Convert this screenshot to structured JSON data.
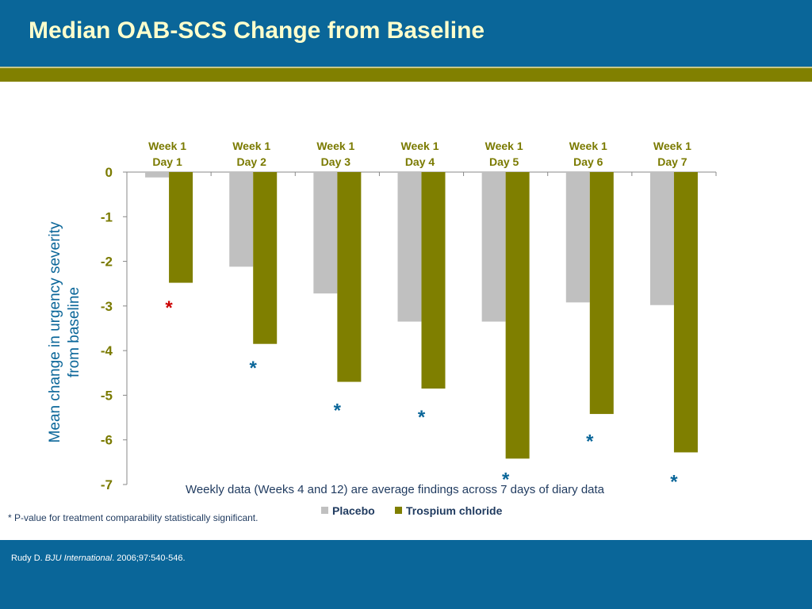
{
  "slide": {
    "title": "Median OAB-SCS Change from Baseline",
    "footnote": "* P-value for treatment comparability statistically significant.",
    "citation": {
      "author": "Rudy D. ",
      "journal": "BJU International",
      "details": ". 2006;97:540-546."
    }
  },
  "colors": {
    "header_bg": "#0a6699",
    "title_text": "#ffffcc",
    "olive_band": "#818000",
    "placebo": "#c0c0c0",
    "trospium": "#7f7f00",
    "axis_text": "#7a7a00",
    "ylabel_text": "#0a6699",
    "star_red": "#cc0000",
    "star_blue": "#0a6699"
  },
  "chart_data": {
    "type": "bar",
    "categories": [
      [
        "Week 1",
        "Day 1"
      ],
      [
        "Week 1",
        "Day 2"
      ],
      [
        "Week 1",
        "Day 3"
      ],
      [
        "Week 1",
        "Day 4"
      ],
      [
        "Week 1",
        "Day 5"
      ],
      [
        "Week 1",
        "Day 6"
      ],
      [
        "Week 1",
        "Day 7"
      ]
    ],
    "series": [
      {
        "name": "Placebo",
        "color": "#c0c0c0",
        "values": [
          -0.12,
          -2.12,
          -2.72,
          -3.35,
          -3.35,
          -2.92,
          -2.98
        ]
      },
      {
        "name": "Trospium chloride",
        "color": "#7f7f00",
        "values": [
          -2.48,
          -3.85,
          -4.7,
          -4.85,
          -6.42,
          -5.42,
          -6.28
        ]
      }
    ],
    "ylabel_lines": [
      "Mean change in urgency severity",
      "from baseline"
    ],
    "ylim": [
      -7,
      0
    ],
    "yticks": [
      0,
      -1,
      -2,
      -3,
      -4,
      -5,
      -6,
      -7
    ],
    "ytick_labels": [
      "0",
      "-1",
      "-2",
      "-3",
      "-4",
      "-5",
      "-6",
      "-7"
    ],
    "legend_position": "bottom",
    "annotation": "Weekly data (Weeks 4 and 12) are average findings across 7 days of diary data",
    "significance_markers": [
      {
        "category_index": 0,
        "symbol": "*",
        "color": "#cc0000",
        "y": -3.0
      },
      {
        "category_index": 1,
        "symbol": "*",
        "color": "#0a6699",
        "y": -4.35
      },
      {
        "category_index": 2,
        "symbol": "*",
        "color": "#0a6699",
        "y": -5.3
      },
      {
        "category_index": 3,
        "symbol": "*",
        "color": "#0a6699",
        "y": -5.45
      },
      {
        "category_index": 4,
        "symbol": "*",
        "color": "#0a6699",
        "y": -6.85
      },
      {
        "category_index": 5,
        "symbol": "*",
        "color": "#0a6699",
        "y": -6.0
      },
      {
        "category_index": 6,
        "symbol": "*",
        "color": "#0a6699",
        "y": -6.9
      }
    ],
    "grid": false
  }
}
